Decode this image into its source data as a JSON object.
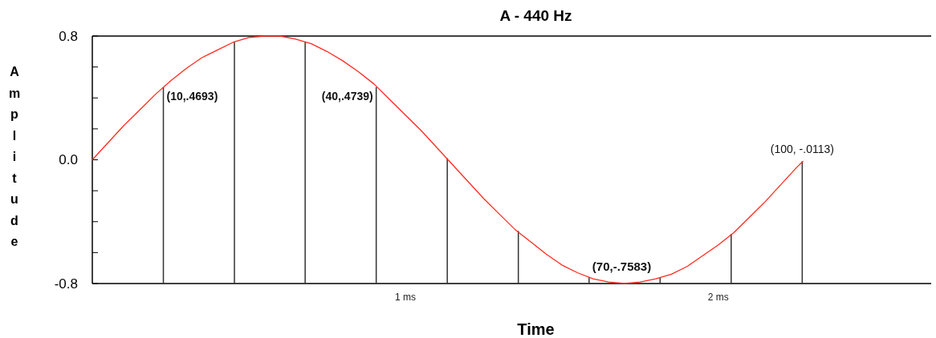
{
  "chart_data": {
    "type": "line",
    "title": "A - 440 Hz",
    "xlabel": "Time",
    "ylabel": "Amplitude",
    "xlim": [
      0,
      2.68
    ],
    "xticks": [
      {
        "value": 1,
        "label": "1 ms"
      },
      {
        "value": 2,
        "label": "2 ms"
      }
    ],
    "ylim": [
      -0.8,
      0.8
    ],
    "yticks": [
      {
        "value": -0.8,
        "label": "-0.8"
      },
      {
        "value": -0.6,
        "label": null
      },
      {
        "value": -0.4,
        "label": null
      },
      {
        "value": -0.2,
        "label": null
      },
      {
        "value": 0,
        "label": "0.0"
      },
      {
        "value": 0.2,
        "label": null
      },
      {
        "value": 0.4,
        "label": null
      },
      {
        "value": 0.6,
        "label": null
      },
      {
        "value": 0.8,
        "label": "0.8"
      }
    ],
    "grid": false,
    "marker": "none",
    "line_style": "solid",
    "series": [
      {
        "color": "#ff2a1f",
        "x": [
          0,
          0.05,
          0.1,
          0.15,
          0.2,
          0.25,
          0.3,
          0.35,
          0.4,
          0.45,
          0.5,
          0.55,
          0.6,
          0.65,
          0.7,
          0.75,
          0.8,
          0.85,
          0.9,
          0.95,
          1,
          1.05,
          1.1,
          1.15,
          1.2,
          1.25,
          1.3,
          1.35,
          1.4,
          1.45,
          1.5,
          1.55,
          1.6,
          1.65,
          1.7,
          1.75,
          1.8,
          1.85,
          1.9,
          1.95,
          2,
          2.05,
          2.1,
          2.15,
          2.2,
          2.25,
          2.27
        ],
        "values": [
          0,
          0.11,
          0.22,
          0.32,
          0.42,
          0.51,
          0.59,
          0.66,
          0.71,
          0.76,
          0.79,
          0.8,
          0.8,
          0.78,
          0.75,
          0.7,
          0.64,
          0.57,
          0.49,
          0.39,
          0.29,
          0.19,
          0.08,
          -0.03,
          -0.14,
          -0.25,
          -0.35,
          -0.45,
          -0.53,
          -0.61,
          -0.68,
          -0.73,
          -0.77,
          -0.79,
          -0.8,
          -0.79,
          -0.77,
          -0.74,
          -0.69,
          -0.62,
          -0.55,
          -0.47,
          -0.37,
          -0.27,
          -0.16,
          -0.05,
          -0.01
        ]
      },
      {
        "type": "bar",
        "color": "#333333",
        "x": [
          0.227,
          0.454,
          0.68,
          0.907,
          1.134,
          1.361,
          1.587,
          1.814,
          2.041,
          2.268
        ],
        "base": [
          -0.8,
          -0.8,
          -0.8,
          -0.8,
          -0.8,
          -0.8,
          -0.8,
          -0.8,
          -0.8,
          -0.8
        ],
        "values": [
          1.27,
          1.56,
          1.56,
          1.27,
          0.81,
          0.34,
          0.04,
          0.04,
          0.32,
          0.79
        ]
      }
    ],
    "annotations": [
      {
        "text": "(10,.4693)",
        "x": 0.227,
        "y": 0.47
      },
      {
        "text": "(40,.4739)",
        "x": 0.907,
        "y": 0.47
      },
      {
        "text": "(70,-.7583)",
        "x": 1.587,
        "y": -0.76
      },
      {
        "text": "(100, -.0113)",
        "x": 2.268,
        "y": -0.01
      }
    ]
  }
}
